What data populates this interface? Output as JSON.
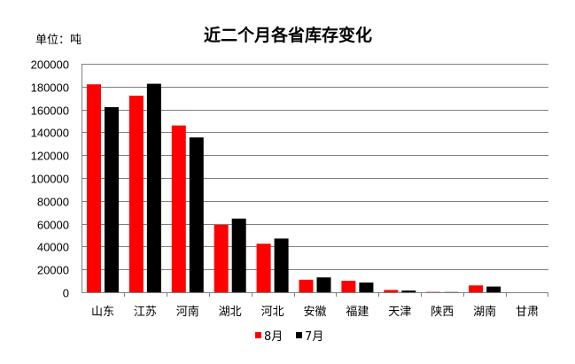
{
  "chart_data": {
    "type": "bar",
    "title": "近二个月各省库存变化",
    "ylabel": "单位：吨",
    "xlabel": "",
    "ylim": [
      0,
      200000
    ],
    "yticks": [
      0,
      20000,
      40000,
      60000,
      80000,
      100000,
      120000,
      140000,
      160000,
      180000,
      200000
    ],
    "grid": true,
    "legend_position": "bottom-center",
    "categories": [
      "山东",
      "江苏",
      "河南",
      "湖北",
      "河北",
      "安徽",
      "福建",
      "天津",
      "陕西",
      "湖南",
      "甘肃"
    ],
    "series": [
      {
        "name": "8月",
        "color": "#ff0000",
        "values": [
          182000,
          172000,
          146000,
          59000,
          42500,
          11000,
          10000,
          2000,
          300,
          6000,
          0
        ]
      },
      {
        "name": "7月",
        "color": "#000000",
        "values": [
          162000,
          182500,
          135500,
          64500,
          47000,
          13000,
          8500,
          1500,
          200,
          5000,
          0
        ]
      }
    ]
  }
}
